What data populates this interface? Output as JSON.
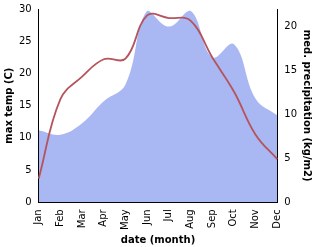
{
  "chart_data": {
    "type": "line",
    "x_label": "date (month)",
    "y_label": "max temp (C)",
    "y2_label": "med. precipitation (kg/m2)",
    "categories": [
      "Jan",
      "Feb",
      "Mar",
      "Apr",
      "May",
      "Jun",
      "Jul",
      "Aug",
      "Sep",
      "Oct",
      "Nov",
      "Dec"
    ],
    "series": [
      {
        "type": "line",
        "color": "#b5545c",
        "axis": "y",
        "values": [
          3.7,
          16,
          19.5,
          22.2,
          22.3,
          29,
          28.6,
          28.2,
          22.5,
          17.2,
          10.5,
          6.7
        ]
      },
      {
        "type": "area",
        "color": "#a9b7f2",
        "axis": "y2",
        "values": [
          8.2,
          7.7,
          9,
          11.5,
          13.4,
          21.8,
          20,
          21.8,
          16.5,
          18,
          11.8,
          9.9
        ]
      }
    ],
    "ylim": [
      0,
      30
    ],
    "yticks": [
      0,
      5,
      10,
      15,
      20,
      25,
      30
    ],
    "y2lim": [
      0,
      22
    ],
    "y2ticks": [
      0,
      5,
      10,
      15,
      20
    ],
    "grid": false
  }
}
